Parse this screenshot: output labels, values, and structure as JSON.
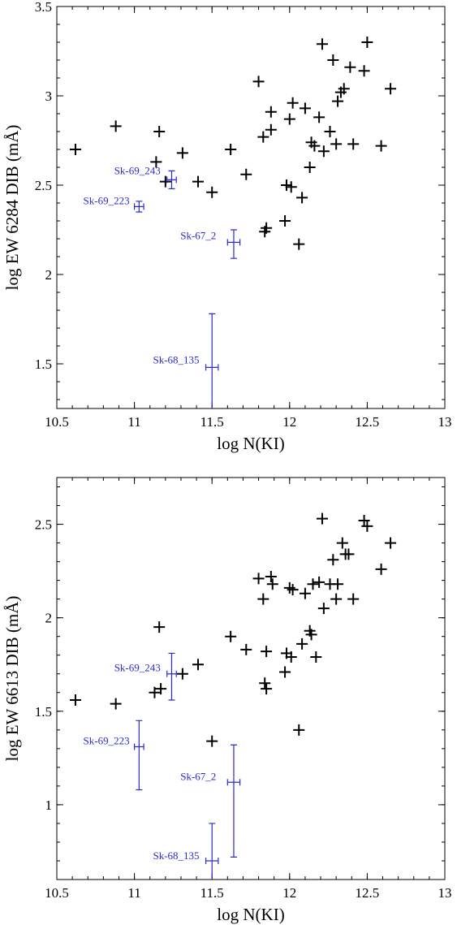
{
  "chart_data": [
    {
      "type": "scatter",
      "xlabel": "log N(KI)",
      "ylabel": "log EW 6284 DIB (mÅ)",
      "xlim": [
        10.5,
        13
      ],
      "ylim": [
        1.25,
        3.5
      ],
      "xticks": [
        10.5,
        11,
        11.5,
        12,
        12.5,
        13
      ],
      "xtick_labels": [
        "10.5",
        "11",
        "11.5",
        "12",
        "12.5",
        "13"
      ],
      "yticks": [
        1.5,
        2,
        2.5,
        3,
        3.5
      ],
      "ytick_labels": [
        "1.5",
        "2",
        "2.5",
        "3",
        "3.5"
      ],
      "colors": {
        "milky_way": "#000000",
        "lmc": "#2a2ad0"
      },
      "series": [
        {
          "points": [
            [
              10.62,
              2.7
            ],
            [
              10.88,
              2.83
            ],
            [
              11.14,
              2.63
            ],
            [
              11.16,
              2.8
            ],
            [
              11.2,
              2.52
            ],
            [
              11.31,
              2.68
            ],
            [
              11.41,
              2.52
            ],
            [
              11.5,
              2.46
            ],
            [
              11.62,
              2.7
            ],
            [
              11.72,
              2.56
            ],
            [
              11.8,
              3.08
            ],
            [
              11.83,
              2.77
            ],
            [
              11.84,
              2.24
            ],
            [
              11.85,
              2.26
            ],
            [
              11.88,
              2.81
            ],
            [
              11.88,
              2.91
            ],
            [
              11.97,
              2.3
            ],
            [
              11.98,
              2.5
            ],
            [
              12.0,
              2.87
            ],
            [
              12.01,
              2.49
            ],
            [
              12.02,
              2.96
            ],
            [
              12.06,
              2.17
            ],
            [
              12.08,
              2.43
            ],
            [
              12.1,
              2.93
            ],
            [
              12.13,
              2.6
            ],
            [
              12.14,
              2.74
            ],
            [
              12.16,
              2.72
            ],
            [
              12.19,
              2.88
            ],
            [
              12.21,
              3.29
            ],
            [
              12.22,
              2.69
            ],
            [
              12.26,
              2.8
            ],
            [
              12.28,
              3.2
            ],
            [
              12.3,
              2.73
            ],
            [
              12.31,
              2.97
            ],
            [
              12.33,
              3.02
            ],
            [
              12.35,
              3.04
            ],
            [
              12.39,
              3.16
            ],
            [
              12.41,
              2.73
            ],
            [
              12.48,
              3.14
            ],
            [
              12.5,
              3.3
            ],
            [
              12.59,
              2.72
            ],
            [
              12.65,
              3.04
            ]
          ]
        },
        {
          "points": [
            {
              "name": "Sk-69_243",
              "x": 11.24,
              "y": 2.53,
              "xerr": 0.03,
              "yerr_lo": 0.05,
              "yerr_hi": 0.05
            },
            {
              "name": "Sk-69_223",
              "x": 11.03,
              "y": 2.38,
              "xerr": 0.03,
              "yerr_lo": 0.03,
              "yerr_hi": 0.03
            },
            {
              "name": "Sk-67_2",
              "x": 11.64,
              "y": 2.18,
              "xerr": 0.04,
              "yerr_lo": 0.09,
              "yerr_hi": 0.07
            },
            {
              "name": "Sk-68_135",
              "x": 11.5,
              "y": 1.48,
              "xerr": 0.04,
              "yerr_lo": 0.3,
              "yerr_hi": 0.3
            }
          ]
        }
      ]
    },
    {
      "type": "scatter",
      "xlabel": "log N(KI)",
      "ylabel": "log EW 6613 DIB (mÅ)",
      "xlim": [
        10.5,
        13
      ],
      "ylim": [
        0.6,
        2.75
      ],
      "xticks": [
        10.5,
        11,
        11.5,
        12,
        12.5,
        13
      ],
      "xtick_labels": [
        "10.5",
        "11",
        "11.5",
        "12",
        "12.5",
        "13"
      ],
      "yticks": [
        1,
        1.5,
        2,
        2.5
      ],
      "ytick_labels": [
        "1",
        "1.5",
        "2",
        "2.5"
      ],
      "colors": {
        "milky_way": "#000000",
        "lmc": "#2a2ad0"
      },
      "series": [
        {
          "points": [
            [
              10.62,
              1.56
            ],
            [
              10.88,
              1.54
            ],
            [
              11.13,
              1.6
            ],
            [
              11.16,
              1.95
            ],
            [
              11.17,
              1.62
            ],
            [
              11.31,
              1.7
            ],
            [
              11.41,
              1.75
            ],
            [
              11.5,
              1.34
            ],
            [
              11.62,
              1.9
            ],
            [
              11.72,
              1.83
            ],
            [
              11.8,
              2.21
            ],
            [
              11.83,
              2.1
            ],
            [
              11.84,
              1.65
            ],
            [
              11.85,
              1.82
            ],
            [
              11.85,
              1.62
            ],
            [
              11.88,
              2.22
            ],
            [
              11.89,
              2.18
            ],
            [
              11.97,
              1.71
            ],
            [
              11.98,
              1.81
            ],
            [
              12.0,
              2.16
            ],
            [
              12.01,
              1.79
            ],
            [
              12.02,
              2.15
            ],
            [
              12.06,
              1.4
            ],
            [
              12.08,
              1.86
            ],
            [
              12.1,
              2.13
            ],
            [
              12.13,
              1.93
            ],
            [
              12.14,
              1.91
            ],
            [
              12.15,
              2.18
            ],
            [
              12.17,
              1.79
            ],
            [
              12.19,
              2.19
            ],
            [
              12.21,
              2.53
            ],
            [
              12.22,
              2.05
            ],
            [
              12.26,
              2.18
            ],
            [
              12.28,
              2.31
            ],
            [
              12.3,
              2.1
            ],
            [
              12.31,
              2.18
            ],
            [
              12.34,
              2.4
            ],
            [
              12.36,
              2.34
            ],
            [
              12.38,
              2.34
            ],
            [
              12.41,
              2.1
            ],
            [
              12.48,
              2.52
            ],
            [
              12.5,
              2.49
            ],
            [
              12.59,
              2.26
            ],
            [
              12.65,
              2.4
            ]
          ]
        },
        {
          "points": [
            {
              "name": "Sk-69_243",
              "x": 11.24,
              "y": 1.7,
              "xerr": 0.03,
              "yerr_lo": 0.14,
              "yerr_hi": 0.11
            },
            {
              "name": "Sk-69_223",
              "x": 11.03,
              "y": 1.31,
              "xerr": 0.03,
              "yerr_lo": 0.23,
              "yerr_hi": 0.14
            },
            {
              "name": "Sk-67_2",
              "x": 11.64,
              "y": 1.12,
              "xerr": 0.04,
              "yerr_lo": 0.4,
              "yerr_hi": 0.2
            },
            {
              "name": "Sk-68_135",
              "x": 11.5,
              "y": 0.7,
              "xerr": 0.04,
              "yerr_lo": 0.15,
              "yerr_hi": 0.2
            }
          ]
        }
      ]
    }
  ]
}
